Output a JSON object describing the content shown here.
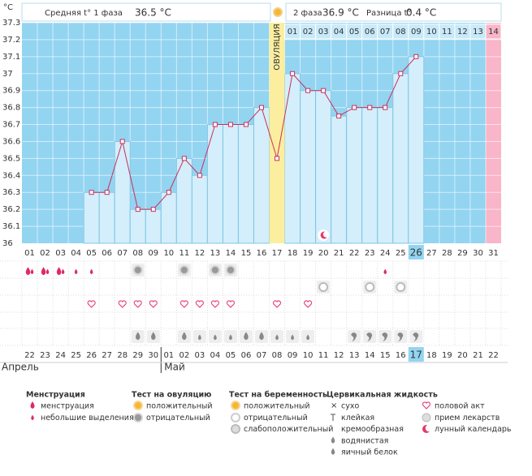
{
  "header": {
    "unit": "°C",
    "phase1_label": "Средняя t° 1 фаза",
    "phase1_value": "36.5 °C",
    "phase2_label": "2 фаза",
    "phase2_value": "36.9 °C",
    "diff_label": "Разница t°",
    "diff_value": "0.4 °C"
  },
  "chart_data": {
    "type": "line",
    "categories": [
      "01",
      "02",
      "03",
      "04",
      "05",
      "06",
      "07",
      "08",
      "09",
      "10",
      "11",
      "12",
      "13",
      "14",
      "15",
      "16",
      "17",
      "18",
      "19",
      "20",
      "21",
      "22",
      "23",
      "24",
      "25",
      "26",
      "27",
      "28",
      "29",
      "30",
      "31"
    ],
    "values": [
      null,
      null,
      null,
      null,
      36.3,
      36.3,
      36.6,
      36.2,
      36.2,
      36.3,
      36.5,
      36.4,
      36.7,
      36.7,
      36.7,
      36.8,
      36.5,
      37.0,
      36.9,
      36.9,
      36.75,
      36.8,
      36.8,
      36.8,
      37.0,
      37.1,
      null,
      null,
      null,
      null,
      null
    ],
    "color": "#c8305e",
    "ylim": [
      36,
      37.3
    ],
    "yticks": [
      36,
      36.1,
      36.2,
      36.3,
      36.4,
      36.5,
      36.6,
      36.7,
      36.8,
      36.9,
      37,
      37.1,
      37.2,
      37.3
    ],
    "grid": true,
    "ovulation_label": "ОВУЛЯЦИЯ",
    "phase2_days": [
      "01",
      "02",
      "03",
      "04",
      "05",
      "06",
      "07",
      "08",
      "09",
      "10",
      "11",
      "12",
      "13",
      "14"
    ]
  },
  "calendar": {
    "dates": [
      "22",
      "23",
      "24",
      "25",
      "26",
      "27",
      "28",
      "29",
      "30",
      "01",
      "02",
      "03",
      "04",
      "05",
      "06",
      "07",
      "08",
      "09",
      "10",
      "11",
      "12",
      "13",
      "14",
      "15",
      "16",
      "17",
      "18",
      "19",
      "20",
      "21",
      "22"
    ],
    "months": [
      "Апрель",
      "Май"
    ]
  },
  "legend": {
    "groups": [
      {
        "title": "Менструация",
        "items": [
          "менструация",
          "небольшие выделения"
        ]
      },
      {
        "title": "Тест на овуляцию",
        "items": [
          "положительный",
          "отрицательный"
        ]
      },
      {
        "title": "Тест на беременность",
        "items": [
          "положительный",
          "отрицательный",
          "слабоположительный"
        ]
      },
      {
        "title": "Цервикальная жидкость",
        "items": [
          "сухо",
          "клейкая",
          "кремообразная",
          "водянистая",
          "яичный белок"
        ]
      }
    ],
    "extra": [
      "половой акт",
      "прием лекарств",
      "лунный календарь"
    ]
  }
}
